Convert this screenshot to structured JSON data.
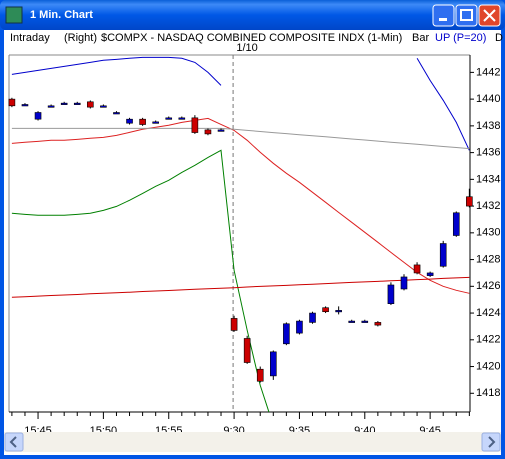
{
  "window": {
    "title": "1 Min. Chart"
  },
  "header": {
    "mode": "Intraday",
    "side": "(Right)",
    "symbol": "$COMPX - NASDAQ COMBINED COMPOSITE INDX (1-Min)",
    "style": "Bar",
    "indicator": "UP (P=20)",
    "truncated": "D"
  },
  "chart_data": {
    "type": "candlestick",
    "annotation": "1/10",
    "categories": [
      null,
      null,
      "15:45",
      null,
      null,
      null,
      null,
      "15:50",
      null,
      null,
      null,
      null,
      "15:55",
      null,
      null,
      null,
      null,
      "9:30",
      null,
      null,
      null,
      null,
      "9:35",
      null,
      null,
      null,
      null,
      "9:40",
      null,
      null,
      null,
      null,
      "9:45",
      null,
      null,
      null
    ],
    "open": [
      1440.0,
      1439.6,
      1438.5,
      1439.5,
      1439.7,
      1439.7,
      1439.8,
      1439.5,
      1439.0,
      1438.2,
      1438.5,
      1438.3,
      1438.6,
      1438.6,
      1438.6,
      1437.7,
      1437.7,
      1423.6,
      1422.1,
      1419.8,
      1419.3,
      1421.7,
      1422.5,
      1423.3,
      1424.4,
      1424.2,
      1423.4,
      1423.4,
      1423.3,
      1424.7,
      1425.8,
      1427.6,
      1426.8,
      1427.5,
      1429.8,
      1432.7
    ],
    "high": [
      1440.1,
      1439.7,
      1439.1,
      1439.6,
      1439.8,
      1439.8,
      1439.9,
      1439.6,
      1439.1,
      1438.6,
      1438.6,
      1438.4,
      1438.7,
      1438.7,
      1438.8,
      1437.8,
      1437.8,
      1423.8,
      1422.3,
      1420.0,
      1421.2,
      1423.3,
      1423.5,
      1424.1,
      1424.5,
      1424.5,
      1423.5,
      1423.5,
      1423.4,
      1426.3,
      1426.9,
      1427.8,
      1427.1,
      1429.4,
      1431.6,
      1433.3
    ],
    "low": [
      1439.4,
      1439.5,
      1438.4,
      1439.4,
      1439.6,
      1439.6,
      1439.3,
      1439.4,
      1438.9,
      1438.1,
      1438.0,
      1438.2,
      1438.5,
      1438.5,
      1437.4,
      1437.3,
      1437.6,
      1422.6,
      1420.2,
      1418.8,
      1419.0,
      1421.6,
      1422.4,
      1423.2,
      1424.0,
      1423.9,
      1423.3,
      1423.3,
      1423.0,
      1424.6,
      1425.7,
      1426.9,
      1426.7,
      1427.4,
      1429.7,
      1431.9
    ],
    "close": [
      1439.5,
      1439.6,
      1439.0,
      1439.5,
      1439.7,
      1439.7,
      1439.4,
      1439.5,
      1439.0,
      1438.5,
      1438.1,
      1438.3,
      1438.6,
      1438.6,
      1437.5,
      1437.4,
      1437.7,
      1422.7,
      1420.3,
      1418.9,
      1421.1,
      1423.2,
      1423.4,
      1424.0,
      1424.1,
      1424.2,
      1423.4,
      1423.4,
      1423.1,
      1426.1,
      1426.7,
      1427.0,
      1427.0,
      1429.2,
      1431.5,
      1432.0
    ],
    "up_color": "#0000cc",
    "down_color": "#cc0000",
    "lines": [
      {
        "color": "#0000cc",
        "values": [
          1441.85,
          1442.0,
          1442.15,
          1442.3,
          1442.45,
          1442.6,
          1442.75,
          1442.9,
          1442.97,
          1443.05,
          1443.12,
          1443.12,
          1443.12,
          1443.05,
          1442.75,
          1442.0,
          1441.03,
          null,
          null,
          null,
          null,
          null,
          null,
          null,
          null,
          null,
          null,
          null,
          null,
          null,
          null,
          1443.05,
          1441.4,
          1439.91,
          1438.26,
          1436.17
        ]
      },
      {
        "color": "#008000",
        "values": [
          1431.46,
          1431.38,
          1431.31,
          1431.31,
          1431.31,
          1431.38,
          1431.46,
          1431.68,
          1431.98,
          1432.43,
          1432.95,
          1433.48,
          1433.93,
          1434.52,
          1435.05,
          1435.64,
          1436.17,
          1427.2,
          1422.71,
          1418.6,
          1415.6,
          null,
          null,
          null,
          null,
          null,
          null,
          null,
          null,
          null,
          null,
          null,
          null,
          null,
          null,
          null
        ]
      },
      {
        "color": "#dd2222",
        "values": [
          1436.69,
          1436.77,
          1436.84,
          1436.92,
          1436.92,
          1436.99,
          1437.07,
          1437.14,
          1437.29,
          1437.51,
          1437.74,
          1437.89,
          1438.04,
          1438.26,
          1438.41,
          1438.56,
          1438.11,
          1437.66,
          1436.92,
          1436.02,
          1435.2,
          1434.45,
          1433.78,
          1433.03,
          1432.28,
          1431.53,
          1430.79,
          1430.04,
          1429.29,
          1428.54,
          1427.79,
          1427.05,
          1426.45,
          1426.0,
          1425.7,
          1425.48
        ]
      },
      {
        "color": "#999999",
        "values": [
          1437.81,
          1437.81,
          1437.81,
          1437.81,
          1437.81,
          1437.81,
          1437.81,
          1437.81,
          1437.81,
          1437.81,
          1437.81,
          1437.81,
          1437.81,
          1437.81,
          1437.81,
          1437.81,
          1437.81,
          1437.74,
          1437.66,
          1437.58,
          1437.5,
          1437.42,
          1437.34,
          1437.26,
          1437.18,
          1437.1,
          1437.02,
          1436.94,
          1436.86,
          1436.78,
          1436.7,
          1436.62,
          1436.54,
          1436.46,
          1436.38,
          1436.3
        ]
      },
      {
        "color": "#cc0000",
        "values": [
          1425.18,
          1425.22,
          1425.27,
          1425.31,
          1425.35,
          1425.39,
          1425.44,
          1425.48,
          1425.52,
          1425.56,
          1425.61,
          1425.65,
          1425.69,
          1425.73,
          1425.78,
          1425.82,
          1425.86,
          1425.9,
          1425.95,
          1425.99,
          1426.03,
          1426.07,
          1426.12,
          1426.16,
          1426.2,
          1426.25,
          1426.29,
          1426.33,
          1426.37,
          1426.42,
          1426.46,
          1426.5,
          1426.54,
          1426.59,
          1426.63,
          1426.67
        ]
      }
    ],
    "ylim": [
      1416.6,
      1443.3
    ],
    "yticks": [
      1418,
      1420,
      1422,
      1424,
      1426,
      1428,
      1430,
      1432,
      1434,
      1436,
      1438,
      1440,
      1442
    ],
    "y_axis_side": "right"
  }
}
